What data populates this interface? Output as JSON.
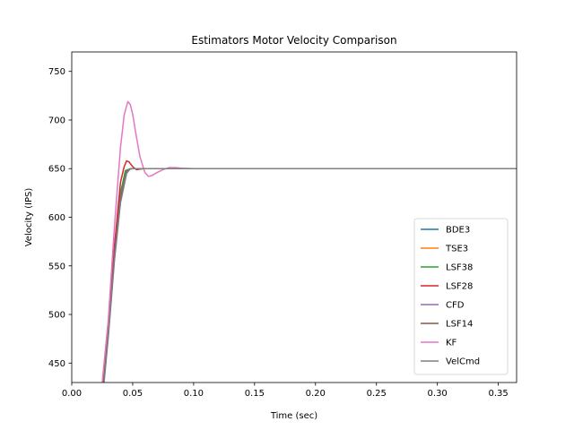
{
  "chart_data": {
    "type": "line",
    "title": "Estimators Motor Velocity Comparison",
    "xlabel": "Time (sec)",
    "ylabel": "Velocity (IPS)",
    "xlim": [
      0.0,
      0.365
    ],
    "ylim": [
      430,
      770
    ],
    "xticks": [
      0.0,
      0.05,
      0.1,
      0.15,
      0.2,
      0.25,
      0.3,
      0.35
    ],
    "xtick_labels": [
      "0.00",
      "0.05",
      "0.10",
      "0.15",
      "0.20",
      "0.25",
      "0.30",
      "0.35"
    ],
    "yticks": [
      450,
      500,
      550,
      600,
      650,
      700,
      750
    ],
    "ytick_labels": [
      "450",
      "500",
      "550",
      "600",
      "650",
      "700",
      "750"
    ],
    "grid": false,
    "legend_position": "lower-right",
    "series": [
      {
        "name": "BDE3",
        "color": "#1f77b4",
        "x": [
          0.0255,
          0.03,
          0.035,
          0.04,
          0.045,
          0.048,
          0.05,
          0.1,
          0.365
        ],
        "y": [
          430,
          480,
          560,
          620,
          647,
          650,
          650,
          650,
          650
        ]
      },
      {
        "name": "TSE3",
        "color": "#ff7f0e",
        "x": [
          0.0255,
          0.03,
          0.035,
          0.04,
          0.045,
          0.048,
          0.05,
          0.1,
          0.365
        ],
        "y": [
          430,
          482,
          562,
          622,
          648,
          650,
          650,
          650,
          650
        ]
      },
      {
        "name": "LSF38",
        "color": "#2ca02c",
        "x": [
          0.0255,
          0.03,
          0.035,
          0.04,
          0.044,
          0.046,
          0.05,
          0.1,
          0.365
        ],
        "y": [
          430,
          483,
          565,
          625,
          648,
          649,
          650,
          650,
          650
        ]
      },
      {
        "name": "LSF28",
        "color": "#d62728",
        "x": [
          0.0255,
          0.03,
          0.035,
          0.04,
          0.043,
          0.045,
          0.047,
          0.05,
          0.053,
          0.056,
          0.06,
          0.1,
          0.365
        ],
        "y": [
          430,
          485,
          570,
          636,
          652,
          658,
          657,
          652,
          649,
          649.5,
          650,
          650,
          650
        ]
      },
      {
        "name": "CFD",
        "color": "#9467bd",
        "x": [
          0.0255,
          0.03,
          0.035,
          0.04,
          0.045,
          0.048,
          0.05,
          0.1,
          0.365
        ],
        "y": [
          430,
          481,
          561,
          621,
          647,
          650,
          650,
          650,
          650
        ]
      },
      {
        "name": "LSF14",
        "color": "#8c564b",
        "x": [
          0.0255,
          0.03,
          0.035,
          0.04,
          0.045,
          0.048,
          0.05,
          0.1,
          0.365
        ],
        "y": [
          430,
          480,
          558,
          618,
          646,
          650,
          650,
          650,
          650
        ]
      },
      {
        "name": "KF",
        "color": "#e377c2",
        "x": [
          0.025,
          0.03,
          0.035,
          0.04,
          0.043,
          0.046,
          0.048,
          0.05,
          0.053,
          0.056,
          0.06,
          0.063,
          0.066,
          0.07,
          0.075,
          0.08,
          0.085,
          0.09,
          0.1,
          0.12,
          0.365
        ],
        "y": [
          430,
          495,
          590,
          672,
          705,
          719,
          716,
          706,
          683,
          662,
          646,
          642,
          643,
          646,
          649,
          651,
          651,
          650.5,
          650,
          650,
          650
        ]
      },
      {
        "name": "VelCmd",
        "color": "#7f7f7f",
        "x": [
          0.0265,
          0.03,
          0.035,
          0.04,
          0.045,
          0.048,
          0.05,
          0.1,
          0.365
        ],
        "y": [
          430,
          477,
          555,
          615,
          645,
          650,
          650,
          650,
          650
        ]
      }
    ]
  }
}
